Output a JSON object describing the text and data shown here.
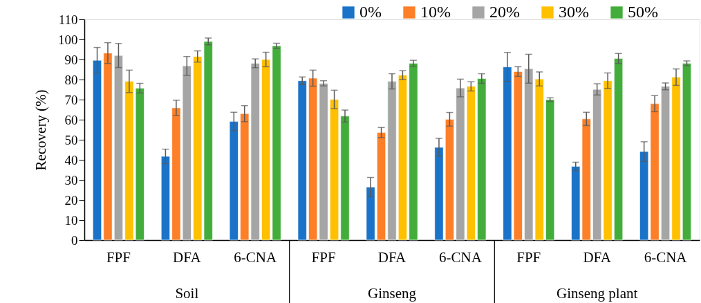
{
  "chart_data": {
    "type": "bar",
    "ylabel": "Recovery (%)",
    "categories": [
      "FPF",
      "DFA",
      "6-CNA",
      "FPF",
      "DFA",
      "6-CNA",
      "FPF",
      "DFA",
      "6-CNA"
    ],
    "annotations": [
      "Soil",
      "Ginseng",
      "Ginseng plant"
    ],
    "series": [
      {
        "name": "0%",
        "color": "#1a73c8",
        "values": [
          89.6,
          41.7,
          59.1,
          79.4,
          26.4,
          46.2,
          86.3,
          36.7,
          44.1
        ],
        "errors": [
          6.4,
          3.6,
          4.6,
          1.9,
          4.8,
          4.5,
          7.2,
          2.1,
          4.9
        ]
      },
      {
        "name": "10%",
        "color": "#fd7f28",
        "values": [
          93.2,
          65.9,
          63.0,
          80.7,
          53.6,
          60.2,
          84.0,
          60.4,
          68.0
        ],
        "errors": [
          5.2,
          3.8,
          4.0,
          4.0,
          2.5,
          3.4,
          2.4,
          3.3,
          4.0
        ]
      },
      {
        "name": "20%",
        "color": "#a5a5a5",
        "values": [
          92.0,
          86.8,
          88.1,
          78.1,
          79.1,
          75.8,
          85.4,
          75.1,
          76.6
        ],
        "errors": [
          6.0,
          4.7,
          2.2,
          1.3,
          3.8,
          4.4,
          7.2,
          2.8,
          1.7
        ]
      },
      {
        "name": "30%",
        "color": "#ffc000",
        "values": [
          79.1,
          91.5,
          90.0,
          70.1,
          82.2,
          76.6,
          80.3,
          79.4,
          81.2
        ],
        "errors": [
          5.6,
          2.8,
          3.6,
          4.6,
          2.2,
          2.3,
          3.5,
          3.9,
          4.1
        ]
      },
      {
        "name": "50%",
        "color": "#43ad3b",
        "values": [
          75.7,
          99.0,
          96.8,
          61.8,
          88.1,
          80.5,
          70.0,
          90.5,
          88.1
        ],
        "errors": [
          2.4,
          1.7,
          1.3,
          3.0,
          1.5,
          2.4,
          0.9,
          2.5,
          1.2
        ]
      }
    ],
    "ylim": [
      0,
      110
    ],
    "yticks": [
      0,
      10,
      20,
      30,
      40,
      50,
      60,
      70,
      80,
      90,
      100,
      110
    ],
    "grid": false,
    "legend": "top right"
  }
}
